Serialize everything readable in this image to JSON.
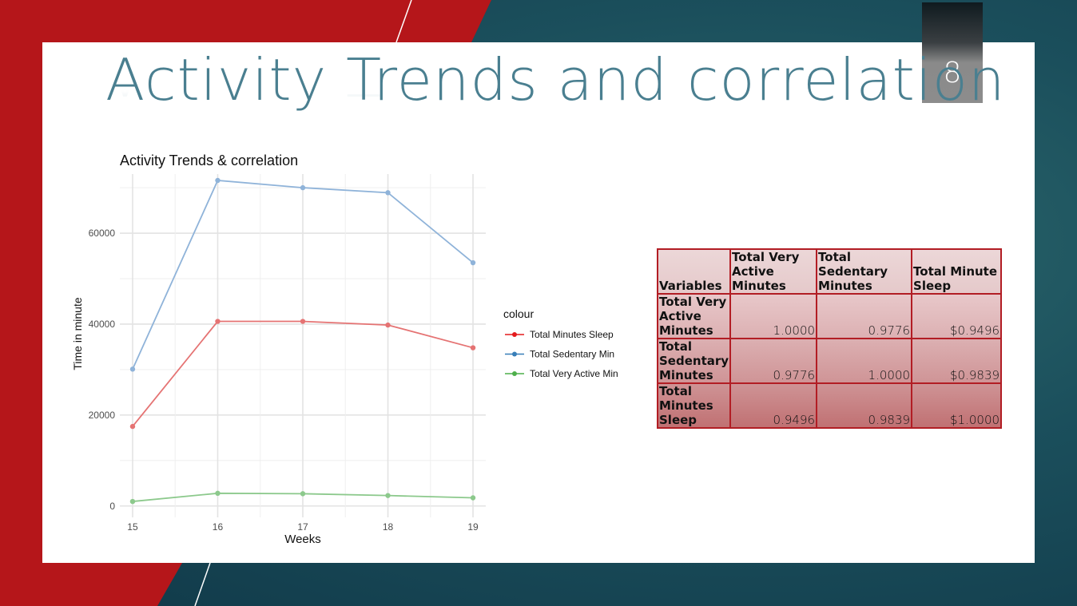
{
  "slide": {
    "title": "Activity Trends and correlation",
    "number": "8"
  },
  "colors": {
    "accent_red": "#b21d24",
    "title_teal": "#4a7f90",
    "background_teal": "#1b4f5c"
  },
  "chart_data": {
    "type": "line",
    "title": "Activity Trends & correlation",
    "xlabel": "Weeks",
    "ylabel": "Time in minute",
    "x": [
      15,
      16,
      17,
      18,
      19
    ],
    "ylim": [
      0,
      73000
    ],
    "yticks": [
      0,
      20000,
      40000,
      60000
    ],
    "grid": true,
    "legend_title": "colour",
    "legend_position": "right",
    "series": [
      {
        "name": "Total Minutes Sleep",
        "color": "#e57373",
        "values": [
          17500,
          40600,
          40600,
          39800,
          34800
        ]
      },
      {
        "name": "Total Sedentary Min",
        "color": "#8fb3d9",
        "values": [
          30100,
          71600,
          70000,
          68900,
          53500
        ]
      },
      {
        "name": "Total Very Active Min",
        "color": "#8cc98c",
        "values": [
          1000,
          2800,
          2700,
          2300,
          1800
        ]
      }
    ],
    "legend_dot_colors": [
      "#e41a1c",
      "#377eb8",
      "#4daf4a"
    ]
  },
  "correlation_table": {
    "headers": [
      "Variables",
      "Total Very Active Minutes",
      "Total Sedentary Minutes",
      "Total Minute Sleep"
    ],
    "rows": [
      {
        "label": "Total Very Active Minutes",
        "values": [
          "1.0000",
          "0.9776",
          "$0.9496"
        ]
      },
      {
        "label": "Total Sedentary Minutes",
        "values": [
          "0.9776",
          "1.0000",
          "$0.9839"
        ]
      },
      {
        "label": "Total Minutes Sleep",
        "values": [
          "0.9496",
          "0.9839",
          "$1.0000"
        ]
      }
    ]
  }
}
